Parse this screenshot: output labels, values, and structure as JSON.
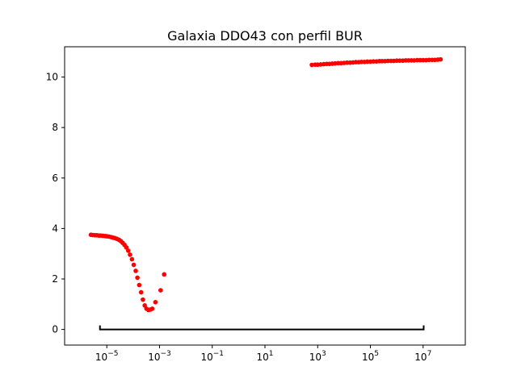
{
  "chart_data": {
    "type": "scatter",
    "title": "Galaxia DDO43 con perfil BUR",
    "xlabel": "",
    "ylabel": "",
    "xscale": "log",
    "xlim_log10": [
      -6.6,
      8.6
    ],
    "ylim": [
      -0.62,
      11.2
    ],
    "grid": false,
    "legend": "none",
    "marker_color": "#ff0000",
    "x_ticks": [
      {
        "log10": -5,
        "base": "10",
        "exp": "−5"
      },
      {
        "log10": -3,
        "base": "10",
        "exp": "−3"
      },
      {
        "log10": -1,
        "base": "10",
        "exp": "−1"
      },
      {
        "log10": 1,
        "base": "10",
        "exp": "1"
      },
      {
        "log10": 3,
        "base": "10",
        "exp": "3"
      },
      {
        "log10": 5,
        "base": "10",
        "exp": "5"
      },
      {
        "log10": 7,
        "base": "10",
        "exp": "7"
      }
    ],
    "y_ticks": [
      {
        "value": 0,
        "label": "0"
      },
      {
        "value": 2,
        "label": "2"
      },
      {
        "value": 4,
        "label": "4"
      },
      {
        "value": 6,
        "label": "6"
      },
      {
        "value": 8,
        "label": "8"
      },
      {
        "value": 10,
        "label": "10"
      }
    ],
    "series": [
      {
        "points": [
          [
            2.5e-06,
            3.75
          ],
          [
            3e-06,
            3.74
          ],
          [
            3.6e-06,
            3.73
          ],
          [
            4.2e-06,
            3.73
          ],
          [
            5e-06,
            3.72
          ],
          [
            6e-06,
            3.72
          ],
          [
            7.2e-06,
            3.71
          ],
          [
            8.6e-06,
            3.7
          ],
          [
            1e-05,
            3.69
          ],
          [
            1.2e-05,
            3.68
          ],
          [
            1.45e-05,
            3.66
          ],
          [
            1.7e-05,
            3.64
          ],
          [
            2e-05,
            3.62
          ],
          [
            2.4e-05,
            3.59
          ],
          [
            2.9e-05,
            3.55
          ],
          [
            3.4e-05,
            3.5
          ],
          [
            4e-05,
            3.43
          ],
          [
            4.7e-05,
            3.35
          ],
          [
            5.5e-05,
            3.25
          ],
          [
            6.5e-05,
            3.12
          ],
          [
            7.6e-05,
            2.96
          ],
          [
            9e-05,
            2.78
          ],
          [
            0.000105,
            2.56
          ],
          [
            0.000125,
            2.32
          ],
          [
            0.000145,
            2.05
          ],
          [
            0.00017,
            1.76
          ],
          [
            0.0002,
            1.47
          ],
          [
            0.000235,
            1.18
          ],
          [
            0.000275,
            0.95
          ],
          [
            0.00032,
            0.82
          ],
          [
            0.00038,
            0.77
          ],
          [
            0.00045,
            0.79
          ],
          [
            0.00053,
            0.82
          ],
          [
            0.0007,
            1.08
          ],
          [
            0.0011,
            1.55
          ],
          [
            0.0015,
            2.18
          ]
        ]
      },
      {
        "points": [
          [
            600,
            10.48
          ],
          [
            800,
            10.49
          ],
          [
            1000,
            10.49
          ],
          [
            1300,
            10.5
          ],
          [
            1700,
            10.51
          ],
          [
            2200,
            10.52
          ],
          [
            2800,
            10.52
          ],
          [
            3600,
            10.53
          ],
          [
            4600,
            10.54
          ],
          [
            6000,
            10.55
          ],
          [
            7700,
            10.55
          ],
          [
            10000,
            10.56
          ],
          [
            13000,
            10.57
          ],
          [
            17000,
            10.57
          ],
          [
            22000,
            10.58
          ],
          [
            28000,
            10.59
          ],
          [
            36000,
            10.59
          ],
          [
            46000,
            10.6
          ],
          [
            60000,
            10.6
          ],
          [
            77000,
            10.61
          ],
          [
            100000,
            10.61
          ],
          [
            130000,
            10.62
          ],
          [
            170000,
            10.62
          ],
          [
            220000,
            10.63
          ],
          [
            280000,
            10.63
          ],
          [
            360000,
            10.63
          ],
          [
            460000,
            10.64
          ],
          [
            600000,
            10.64
          ],
          [
            770000,
            10.64
          ],
          [
            1000000,
            10.65
          ],
          [
            1300000,
            10.65
          ],
          [
            1700000,
            10.65
          ],
          [
            2200000,
            10.66
          ],
          [
            2800000,
            10.66
          ],
          [
            3600000,
            10.66
          ],
          [
            4600000,
            10.66
          ],
          [
            6000000,
            10.67
          ],
          [
            7700000,
            10.67
          ],
          [
            10000000,
            10.67
          ],
          [
            13000000,
            10.67
          ],
          [
            17000000,
            10.68
          ],
          [
            22000000,
            10.68
          ],
          [
            28000000,
            10.68
          ],
          [
            36000000,
            10.69
          ],
          [
            46000000,
            10.7
          ]
        ]
      }
    ],
    "bracket_line": {
      "x_start": 5.5e-06,
      "x_end": 10500000.0,
      "y": 0,
      "color": "#000000"
    }
  }
}
